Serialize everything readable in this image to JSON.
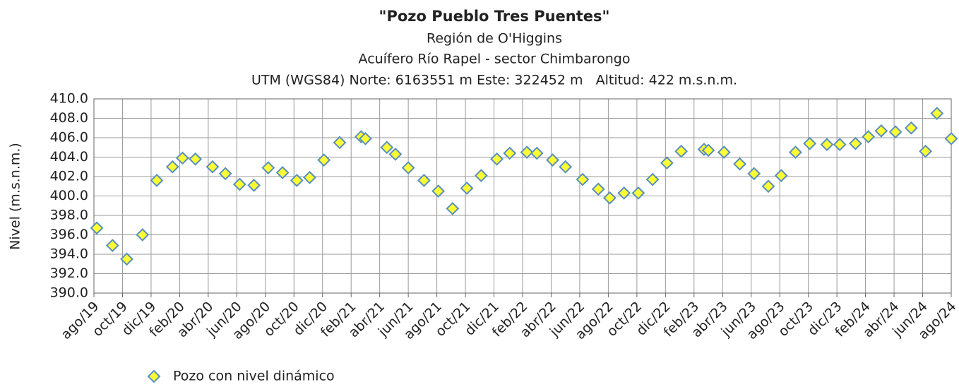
{
  "chart_data": {
    "type": "scatter",
    "title": "\"Pozo Pueblo Tres Puentes\"",
    "subtitle": [
      "Región de O'Higgins",
      "Acuífero Río Rapel - sector Chimbarongo",
      "UTM (WGS84) Norte: 6163551 m Este: 322452 m   Altitud: 422 m.s.n.m."
    ],
    "y_label": "Nivel (m.s.n.m.)",
    "xlim": [
      0,
      60
    ],
    "xticks": [
      {
        "value": 0,
        "label": "ago/19"
      },
      {
        "value": 2,
        "label": "oct/19"
      },
      {
        "value": 4,
        "label": "dic/19"
      },
      {
        "value": 6,
        "label": "feb/20"
      },
      {
        "value": 8,
        "label": "abr/20"
      },
      {
        "value": 10,
        "label": "jun/20"
      },
      {
        "value": 12,
        "label": "ago/20"
      },
      {
        "value": 14,
        "label": "oct/20"
      },
      {
        "value": 16,
        "label": "dic/20"
      },
      {
        "value": 18,
        "label": "feb/21"
      },
      {
        "value": 20,
        "label": "abr/21"
      },
      {
        "value": 22,
        "label": "jun/21"
      },
      {
        "value": 24,
        "label": "ago/21"
      },
      {
        "value": 26,
        "label": "oct/21"
      },
      {
        "value": 28,
        "label": "dic/21"
      },
      {
        "value": 30,
        "label": "feb/22"
      },
      {
        "value": 32,
        "label": "abr/22"
      },
      {
        "value": 34,
        "label": "jun/22"
      },
      {
        "value": 36,
        "label": "ago/22"
      },
      {
        "value": 38,
        "label": "oct/22"
      },
      {
        "value": 40,
        "label": "dic/22"
      },
      {
        "value": 42,
        "label": "feb/23"
      },
      {
        "value": 44,
        "label": "abr/23"
      },
      {
        "value": 46,
        "label": "jun/23"
      },
      {
        "value": 48,
        "label": "ago/23"
      },
      {
        "value": 50,
        "label": "oct/23"
      },
      {
        "value": 52,
        "label": "dic/23"
      },
      {
        "value": 54,
        "label": "feb/24"
      },
      {
        "value": 56,
        "label": "abr/24"
      },
      {
        "value": 58,
        "label": "jun/24"
      },
      {
        "value": 60,
        "label": "ago/24"
      }
    ],
    "ylim": [
      390,
      410
    ],
    "yticks": [
      {
        "value": 390,
        "label": "390.0"
      },
      {
        "value": 392,
        "label": "392.0"
      },
      {
        "value": 394,
        "label": "394.0"
      },
      {
        "value": 396,
        "label": "396.0"
      },
      {
        "value": 398,
        "label": "398.0"
      },
      {
        "value": 400,
        "label": "400.0"
      },
      {
        "value": 402,
        "label": "402.0"
      },
      {
        "value": 404,
        "label": "404.0"
      },
      {
        "value": 406,
        "label": "406.0"
      },
      {
        "value": 408,
        "label": "408.0"
      },
      {
        "value": 410,
        "label": "410.0"
      }
    ],
    "grid": true,
    "series": [
      {
        "name": "Pozo con nivel dinámico",
        "color": "#ffff33",
        "edge_color": "#5b8fbf",
        "x": [
          0.2,
          1.3,
          2.3,
          3.4,
          4.4,
          5.5,
          6.2,
          7.1,
          8.3,
          9.2,
          10.2,
          11.2,
          12.2,
          13.2,
          14.2,
          15.1,
          16.1,
          17.2,
          18.7,
          19.0,
          20.5,
          21.1,
          22.0,
          23.1,
          24.1,
          25.1,
          26.1,
          27.1,
          28.2,
          29.1,
          30.3,
          31.0,
          32.1,
          33.0,
          34.2,
          35.3,
          36.1,
          37.1,
          38.1,
          39.1,
          40.1,
          41.1,
          42.7,
          43.0,
          44.1,
          45.2,
          46.2,
          47.2,
          48.1,
          49.1,
          50.1,
          51.3,
          52.2,
          53.3,
          54.2,
          55.1,
          56.1,
          57.2,
          58.2,
          59.0,
          60.0
        ],
        "values": [
          396.7,
          394.9,
          393.5,
          396.0,
          401.6,
          403.0,
          403.9,
          403.8,
          403.0,
          402.3,
          401.2,
          401.1,
          402.9,
          402.4,
          401.6,
          401.9,
          403.7,
          405.5,
          406.1,
          405.9,
          405.0,
          404.3,
          402.9,
          401.6,
          400.5,
          398.7,
          400.8,
          402.1,
          403.8,
          404.4,
          404.5,
          404.4,
          403.7,
          403.0,
          401.7,
          400.7,
          399.8,
          400.3,
          400.3,
          401.7,
          403.4,
          404.6,
          404.8,
          404.7,
          404.5,
          403.3,
          402.3,
          401.0,
          402.1,
          404.5,
          405.4,
          405.3,
          405.3,
          405.4,
          406.1,
          406.7,
          406.6,
          407.0,
          404.6,
          408.5,
          405.9
        ]
      }
    ]
  }
}
